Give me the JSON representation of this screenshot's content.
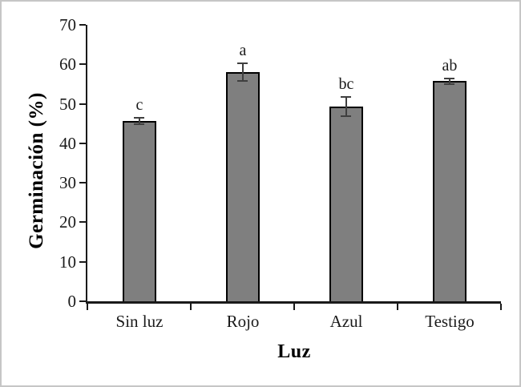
{
  "figure": {
    "background_color": "#ffffff",
    "frame_border_color": "#c6c6c6"
  },
  "chart_data": {
    "type": "bar",
    "title": "",
    "xlabel": "Luz",
    "ylabel": "Germinación (%)",
    "categories": [
      "Sin luz",
      "Rojo",
      "Azul",
      "Testigo"
    ],
    "values": [
      45.7,
      58.0,
      49.4,
      55.8
    ],
    "errors": [
      1.0,
      2.4,
      2.6,
      0.9
    ],
    "sig_letters": [
      "c",
      "a",
      "bc",
      "ab"
    ],
    "ylim": [
      0,
      70
    ],
    "yticks": [
      0,
      10,
      20,
      30,
      40,
      50,
      60,
      70
    ],
    "grid": false,
    "legend": null,
    "bar_color": "#7f7f7f",
    "bar_border_color": "#000000",
    "error_bar_color": "#3f3f3f",
    "axis_color": "#1a1a1a",
    "text_color": "#1a1a1a"
  }
}
